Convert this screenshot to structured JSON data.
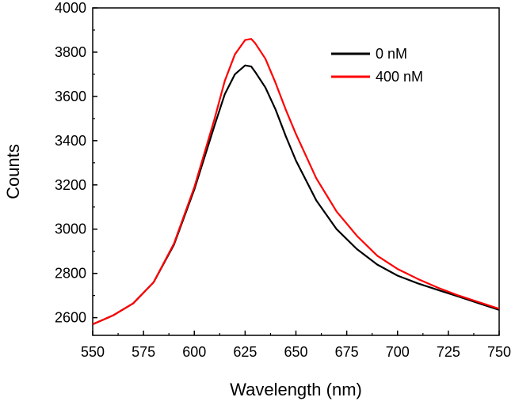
{
  "chart_data": {
    "type": "line",
    "title": "",
    "xlabel": "Wavelength (nm)",
    "ylabel": "Counts",
    "xlim": [
      550,
      750
    ],
    "ylim": [
      2520,
      4000
    ],
    "xticks": [
      550,
      575,
      600,
      625,
      650,
      675,
      700,
      725,
      750
    ],
    "yticks": [
      2600,
      2800,
      3000,
      3200,
      3400,
      3600,
      3800,
      4000
    ],
    "grid": false,
    "legend_position": "top-right",
    "series": [
      {
        "name": "0 nM",
        "color": "#000000",
        "x": [
          550,
          560,
          570,
          580,
          590,
          600,
          610,
          615,
          620,
          625,
          628,
          630,
          635,
          640,
          645,
          650,
          660,
          670,
          680,
          690,
          700,
          710,
          720,
          730,
          740,
          750
        ],
        "y": [
          2570,
          2610,
          2665,
          2760,
          2930,
          3180,
          3470,
          3610,
          3700,
          3740,
          3735,
          3710,
          3640,
          3540,
          3420,
          3310,
          3130,
          3000,
          2910,
          2840,
          2790,
          2755,
          2725,
          2695,
          2665,
          2635
        ]
      },
      {
        "name": "400 nM",
        "color": "#ff0000",
        "x": [
          550,
          560,
          570,
          580,
          590,
          600,
          610,
          615,
          620,
          625,
          628,
          630,
          635,
          640,
          645,
          650,
          660,
          670,
          680,
          690,
          700,
          710,
          720,
          730,
          740,
          750
        ],
        "y": [
          2570,
          2610,
          2665,
          2760,
          2935,
          3190,
          3500,
          3670,
          3790,
          3855,
          3860,
          3840,
          3770,
          3660,
          3540,
          3430,
          3230,
          3080,
          2970,
          2880,
          2820,
          2775,
          2735,
          2700,
          2670,
          2640
        ]
      }
    ]
  }
}
